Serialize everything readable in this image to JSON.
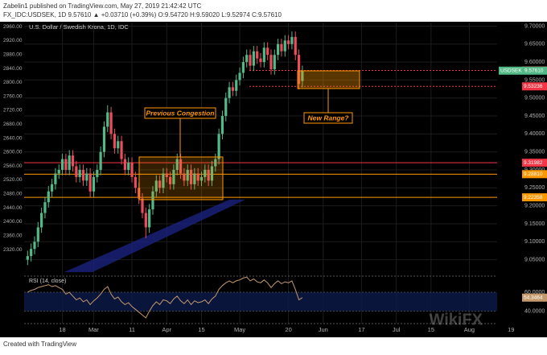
{
  "header": {
    "author_line": "Zabelin1 published on TradingView.com, May 27, 2019 21:42:42 UTC",
    "symbol_line": "FX_IDC:USDSEK, 1D 9.57610 ▲ +0.03710 (+0.39%) O:9.54720 H:9.59020 L:9.52974 C:9.57610"
  },
  "footer": {
    "text": "Created with TradingView",
    "watermark": "WikiFX"
  },
  "chart_data": [
    {
      "type": "candlestick",
      "title": "U.S. Dollar / Swedish Krona, 1D, IDC",
      "symbol": "USDSEK",
      "close_label": "9.57610",
      "up_color": "#53b987",
      "down_color": "#eb4d5c",
      "open": [
        9.05,
        9.06,
        9.08,
        9.1,
        9.14,
        9.18,
        9.21,
        9.24,
        9.26,
        9.29,
        9.3,
        9.33,
        9.3,
        9.34,
        9.31,
        9.28,
        9.3,
        9.27,
        9.29,
        9.24,
        9.28,
        9.3,
        9.35,
        9.42,
        9.46,
        9.4,
        9.36,
        9.38,
        9.33,
        9.3,
        9.32,
        9.28,
        9.25,
        9.22,
        9.18,
        9.14,
        9.19,
        9.24,
        9.27,
        9.25,
        9.29,
        9.28,
        9.26,
        9.3,
        9.33,
        9.29,
        9.27,
        9.3,
        9.26,
        9.29,
        9.27,
        9.28,
        9.3,
        9.27,
        9.31,
        9.33,
        9.4,
        9.45,
        9.5,
        9.53,
        9.52,
        9.55,
        9.57,
        9.6,
        9.62,
        9.59,
        9.63,
        9.61,
        9.6,
        9.64,
        9.62,
        9.58,
        9.62,
        9.65,
        9.63,
        9.66,
        9.65,
        9.67,
        9.62,
        9.5472
      ],
      "high": [
        9.075,
        9.095,
        9.115,
        9.155,
        9.195,
        9.225,
        9.255,
        9.275,
        9.305,
        9.315,
        9.345,
        9.345,
        9.355,
        9.355,
        9.325,
        9.315,
        9.315,
        9.305,
        9.305,
        9.295,
        9.315,
        9.365,
        9.435,
        9.48,
        9.475,
        9.415,
        9.395,
        9.395,
        9.345,
        9.335,
        9.335,
        9.295,
        9.265,
        9.235,
        9.195,
        9.205,
        9.255,
        9.285,
        9.285,
        9.305,
        9.305,
        9.295,
        9.315,
        9.345,
        9.345,
        9.305,
        9.315,
        9.315,
        9.305,
        9.305,
        9.295,
        9.315,
        9.315,
        9.325,
        9.345,
        9.415,
        9.465,
        9.515,
        9.545,
        9.545,
        9.565,
        9.585,
        9.615,
        9.635,
        9.635,
        9.645,
        9.645,
        9.625,
        9.655,
        9.655,
        9.635,
        9.635,
        9.665,
        9.665,
        9.675,
        9.675,
        9.685,
        9.685,
        9.635,
        9.5902
      ],
      "low": [
        9.035,
        9.045,
        9.065,
        9.085,
        9.125,
        9.165,
        9.195,
        9.225,
        9.245,
        9.275,
        9.285,
        9.285,
        9.285,
        9.295,
        9.265,
        9.265,
        9.255,
        9.255,
        9.225,
        9.225,
        9.265,
        9.285,
        9.335,
        9.405,
        9.385,
        9.345,
        9.345,
        9.315,
        9.285,
        9.285,
        9.265,
        9.235,
        9.205,
        9.165,
        9.11,
        9.125,
        9.175,
        9.225,
        9.235,
        9.235,
        9.265,
        9.245,
        9.245,
        9.285,
        9.275,
        9.255,
        9.255,
        9.245,
        9.245,
        9.255,
        9.255,
        9.265,
        9.255,
        9.255,
        9.295,
        9.315,
        9.385,
        9.435,
        9.485,
        9.505,
        9.505,
        9.535,
        9.555,
        9.585,
        9.575,
        9.575,
        9.595,
        9.585,
        9.585,
        9.605,
        9.565,
        9.565,
        9.605,
        9.615,
        9.615,
        9.635,
        9.635,
        9.605,
        9.524,
        9.52974
      ],
      "close": [
        9.06,
        9.08,
        9.1,
        9.14,
        9.18,
        9.21,
        9.24,
        9.26,
        9.29,
        9.3,
        9.33,
        9.3,
        9.34,
        9.31,
        9.28,
        9.3,
        9.27,
        9.29,
        9.24,
        9.28,
        9.3,
        9.35,
        9.42,
        9.46,
        9.4,
        9.36,
        9.38,
        9.33,
        9.3,
        9.32,
        9.28,
        9.25,
        9.22,
        9.18,
        9.14,
        9.19,
        9.24,
        9.27,
        9.25,
        9.29,
        9.28,
        9.26,
        9.3,
        9.33,
        9.29,
        9.27,
        9.3,
        9.26,
        9.29,
        9.27,
        9.28,
        9.3,
        9.27,
        9.31,
        9.33,
        9.4,
        9.45,
        9.5,
        9.53,
        9.52,
        9.55,
        9.57,
        9.6,
        9.62,
        9.59,
        9.63,
        9.61,
        9.6,
        9.64,
        9.62,
        9.58,
        9.62,
        9.65,
        9.63,
        9.66,
        9.65,
        9.67,
        9.62,
        9.539,
        9.5761
      ],
      "xlim": [
        -1,
        135
      ],
      "xticks": [
        {
          "value": 10,
          "label": "18"
        },
        {
          "value": 19,
          "label": "Mar"
        },
        {
          "value": 30,
          "label": "11"
        },
        {
          "value": 40,
          "label": "Apr"
        },
        {
          "value": 50,
          "label": "15"
        },
        {
          "value": 61,
          "label": "May"
        },
        {
          "value": 75,
          "label": "20"
        },
        {
          "value": 85,
          "label": "Jun"
        },
        {
          "value": 96,
          "label": "17"
        },
        {
          "value": 106,
          "label": "Jul"
        },
        {
          "value": 116,
          "label": "15"
        },
        {
          "value": 127,
          "label": "Aug"
        },
        {
          "value": 139,
          "label": "19"
        }
      ],
      "ylim": [
        9.02,
        9.71
      ],
      "yticks": [
        {
          "value": 9.05,
          "label": "9.05000"
        },
        {
          "value": 9.1,
          "label": "9.10000"
        },
        {
          "value": 9.15,
          "label": "9.15000"
        },
        {
          "value": 9.2,
          "label": "9.20000"
        },
        {
          "value": 9.25,
          "label": "9.25000"
        },
        {
          "value": 9.3,
          "label": "9.30000"
        },
        {
          "value": 9.35,
          "label": "9.35000"
        },
        {
          "value": 9.4,
          "label": "9.40000"
        },
        {
          "value": 9.45,
          "label": "9.45000"
        },
        {
          "value": 9.5,
          "label": "9.50000"
        },
        {
          "value": 9.55,
          "label": "9.55000"
        },
        {
          "value": 9.6,
          "label": "9.60000"
        },
        {
          "value": 9.65,
          "label": "9.65000"
        },
        {
          "value": 9.7,
          "label": "9.70000"
        }
      ],
      "y2lim": [
        2260,
        2972
      ],
      "y2ticks": [
        {
          "value": 2320,
          "label": "2320.00"
        },
        {
          "value": 2360,
          "label": "2360.00"
        },
        {
          "value": 2400,
          "label": "2400.00"
        },
        {
          "value": 2440,
          "label": "2440.00"
        },
        {
          "value": 2480,
          "label": "2480.00"
        },
        {
          "value": 2520,
          "label": "2520.00"
        },
        {
          "value": 2560,
          "label": "2560.00"
        },
        {
          "value": 2600,
          "label": "2600.00"
        },
        {
          "value": 2640,
          "label": "2640.00"
        },
        {
          "value": 2680,
          "label": "2680.00"
        },
        {
          "value": 2720,
          "label": "2720.00"
        },
        {
          "value": 2760,
          "label": "2760.00"
        },
        {
          "value": 2800,
          "label": "2800.00"
        },
        {
          "value": 2840,
          "label": "2840.00"
        },
        {
          "value": 2880,
          "label": "2880.00"
        },
        {
          "value": 2920,
          "label": "2920.00"
        },
        {
          "value": 2960,
          "label": "2960.00"
        }
      ],
      "grid": true,
      "hlines": [
        {
          "value": 9.5767,
          "label": "9.57670",
          "color": "#f23645",
          "style": "dotted"
        },
        {
          "value": 9.53236,
          "label": "9.53236",
          "color": "#f23645",
          "style": "dotted"
        },
        {
          "value": 9.31982,
          "label": "9.31982",
          "color": "#f23645",
          "style": "solid"
        },
        {
          "value": 9.2881,
          "label": "9.28810",
          "color": "#ff9800",
          "style": "solid"
        },
        {
          "value": 9.22358,
          "label": "9.22358",
          "color": "#ff9800",
          "style": "solid"
        }
      ],
      "annotations": [
        "Previous Congestion",
        "New Range?"
      ]
    },
    {
      "type": "line",
      "title": "RSI (14, close)",
      "color": "#c49a6c",
      "values": [
        60,
        62,
        63,
        65,
        66,
        67,
        68,
        66,
        67,
        65,
        63,
        58,
        60,
        56,
        52,
        54,
        50,
        52,
        47,
        51,
        54,
        58,
        63,
        66,
        58,
        53,
        55,
        50,
        47,
        49,
        45,
        42,
        39,
        36,
        33,
        40,
        46,
        50,
        47,
        52,
        51,
        48,
        53,
        56,
        51,
        48,
        52,
        47,
        51,
        49,
        50,
        52,
        48,
        53,
        56,
        63,
        67,
        70,
        72,
        70,
        72,
        73,
        75,
        76,
        72,
        74,
        71,
        70,
        73,
        70,
        65,
        69,
        72,
        69,
        71,
        70,
        72,
        63,
        52,
        54.3464
      ],
      "ylim": [
        27,
        77
      ],
      "yticks": [
        {
          "value": 40,
          "label": "40.0000"
        },
        {
          "value": 60,
          "label": "60.0000"
        }
      ]
    }
  ]
}
